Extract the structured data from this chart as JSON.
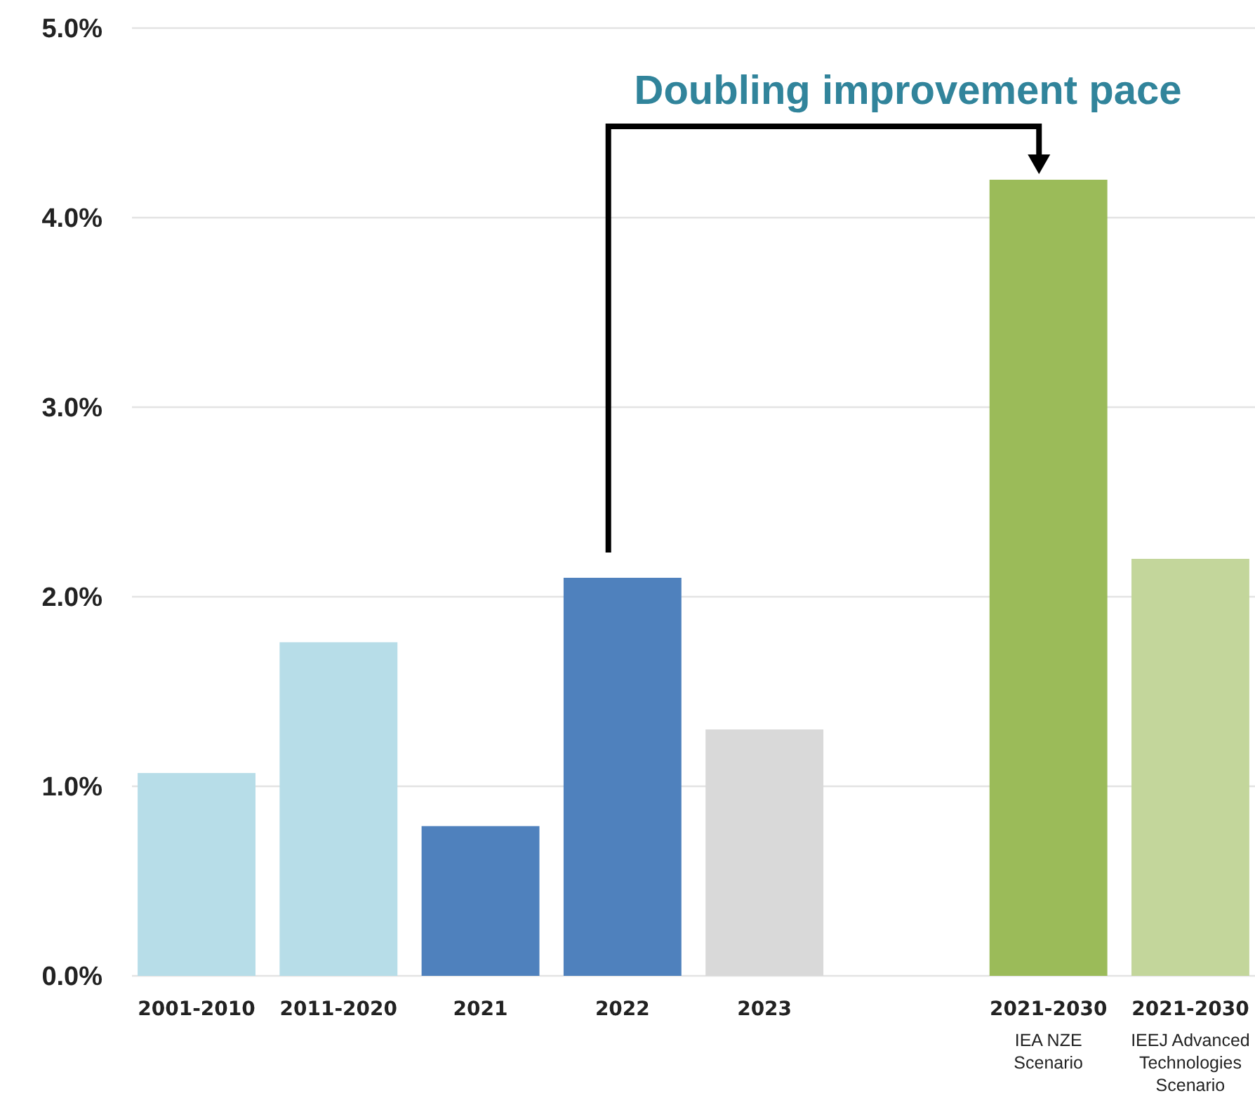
{
  "chart_data": {
    "type": "bar",
    "categories": [
      "2001-2010",
      "2011-2020",
      "2021",
      "2022",
      "2023",
      null,
      "2021-2030\nIEA NZE\nScenario",
      "2021-2030\nIEEJ Advanced\nTechnologies\nScenario"
    ],
    "values": [
      1.07,
      1.76,
      0.79,
      2.1,
      1.3,
      null,
      4.2,
      2.2
    ],
    "colors": [
      "#b7dde8",
      "#b7dde8",
      "#4f81bd",
      "#4f81bd",
      "#d9d9d9",
      null,
      "#9bbb59",
      "#c3d69b"
    ],
    "ylim": [
      0,
      5
    ],
    "yticks": [
      {
        "value": 0,
        "label": "0.0%"
      },
      {
        "value": 1,
        "label": "1.0%"
      },
      {
        "value": 2,
        "label": "2.0%"
      },
      {
        "value": 3,
        "label": "3.0%"
      },
      {
        "value": 4,
        "label": "4.0%"
      },
      {
        "value": 5,
        "label": "5.0%"
      }
    ],
    "grid": "y",
    "annotations": [
      "Doubling improvement pace"
    ]
  }
}
